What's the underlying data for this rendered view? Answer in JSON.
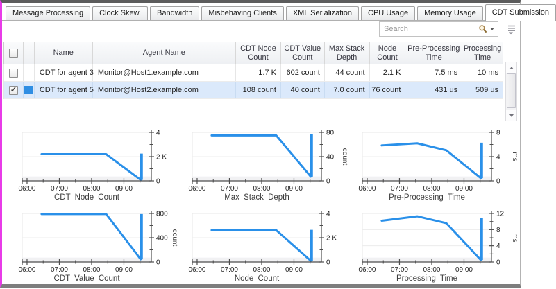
{
  "tabs": {
    "items": [
      "Message Processing",
      "Clock Skew.",
      "Bandwidth",
      "Misbehaving Clients",
      "XML Serialization",
      "CPU Usage",
      "Memory Usage",
      "CDT Submission"
    ],
    "active": "CDT Submission"
  },
  "toolbar": {
    "search": {
      "placeholder": "Search",
      "value": ""
    }
  },
  "table": {
    "header_checkbox_checked": false,
    "columns": [
      {
        "label": "",
        "type": "checkbox"
      },
      {
        "label": "",
        "type": "swatch"
      },
      {
        "label": "Name"
      },
      {
        "label": "Agent Name"
      },
      {
        "label": "CDT Node Count"
      },
      {
        "label": "CDT Value Count"
      },
      {
        "label": "Max Stack Depth"
      },
      {
        "label": "Node Count"
      },
      {
        "label": "Pre-Processing Time"
      },
      {
        "label": "Processing Time"
      }
    ],
    "rows": [
      {
        "checked": false,
        "selected": false,
        "swatch": null,
        "cells": [
          "CDT for agent 3",
          "Monitor@Host1.example.com",
          "1.7 K",
          "602 count",
          "44 count",
          "2.1 K",
          "7.5 ms",
          "10 ms"
        ]
      },
      {
        "checked": true,
        "selected": true,
        "swatch": "#2f8ee3",
        "cells": [
          "CDT for agent 5",
          "Monitor@Host2.example.com",
          "108 count",
          "40 count",
          "7.0 count",
          "76 count",
          "431 us",
          "509 us"
        ]
      }
    ]
  },
  "colors": {
    "line_blue": "#2a90e9",
    "selected_row_bg": "#dbe9fb",
    "swatch_blue": "#2f8ee3",
    "frame_magenta": "#e83be8",
    "axis": "#4d4d4d"
  },
  "chart_data": [
    {
      "type": "line",
      "title": "CDT Node Count",
      "ylabel": "",
      "xlim": [
        5.85,
        9.85
      ],
      "ylim": [
        0,
        4
      ],
      "xticks": [
        {
          "v": 6,
          "label": "06:00"
        },
        {
          "v": 7,
          "label": "07:00"
        },
        {
          "v": 8,
          "label": "08:00"
        },
        {
          "v": 9,
          "label": "09:00"
        }
      ],
      "xminor": [
        6.5,
        7.5,
        8.5,
        9.5
      ],
      "yticks": [
        {
          "v": 0,
          "label": "0"
        },
        {
          "v": 2,
          "label": "2 K"
        },
        {
          "v": 4,
          "label": "4"
        }
      ],
      "yminor": [
        1,
        3
      ],
      "points": [
        [
          6.45,
          2.2
        ],
        [
          8.45,
          2.2
        ],
        [
          9.52,
          0.08
        ]
      ],
      "spike": {
        "x": 9.54,
        "y0": 0.08,
        "y1": 2.25
      }
    },
    {
      "type": "line",
      "title": "Max Stack Depth",
      "ylabel": "count",
      "xlim": [
        5.85,
        9.85
      ],
      "ylim": [
        0,
        80
      ],
      "xticks": [
        {
          "v": 6,
          "label": "06:00"
        },
        {
          "v": 7,
          "label": "07:00"
        },
        {
          "v": 8,
          "label": "08:00"
        },
        {
          "v": 9,
          "label": "09:00"
        }
      ],
      "xminor": [
        6.5,
        7.5,
        8.5,
        9.5
      ],
      "yticks": [
        {
          "v": 0,
          "label": "0"
        },
        {
          "v": 40,
          "label": "40"
        },
        {
          "v": 80,
          "label": "80"
        }
      ],
      "yminor": [
        20,
        60
      ],
      "points": [
        [
          6.45,
          75
        ],
        [
          8.45,
          75
        ],
        [
          9.52,
          7
        ]
      ],
      "spike": {
        "x": 9.54,
        "y0": 7,
        "y1": 77
      }
    },
    {
      "type": "line",
      "title": "Pre-Processing Time",
      "ylabel": "ms",
      "xlim": [
        5.85,
        9.85
      ],
      "ylim": [
        0,
        8
      ],
      "xticks": [
        {
          "v": 6,
          "label": "06:00"
        },
        {
          "v": 7,
          "label": "07:00"
        },
        {
          "v": 8,
          "label": "08:00"
        },
        {
          "v": 9,
          "label": "09:00"
        }
      ],
      "xminor": [
        6.5,
        7.5,
        8.5,
        9.5
      ],
      "yticks": [
        {
          "v": 0,
          "label": "0"
        },
        {
          "v": 4,
          "label": "4"
        },
        {
          "v": 8,
          "label": "8"
        }
      ],
      "yminor": [
        2,
        6
      ],
      "points": [
        [
          6.45,
          5.85
        ],
        [
          7.55,
          6.2
        ],
        [
          8.45,
          5.05
        ],
        [
          9.52,
          0.45
        ]
      ],
      "spike": {
        "x": 9.54,
        "y0": 0.45,
        "y1": 6.3
      }
    },
    {
      "type": "line",
      "title": "CDT Value Count",
      "ylabel": "count",
      "xlim": [
        5.85,
        9.85
      ],
      "ylim": [
        0,
        800
      ],
      "xticks": [
        {
          "v": 6,
          "label": "06:00"
        },
        {
          "v": 7,
          "label": "07:00"
        },
        {
          "v": 8,
          "label": "08:00"
        },
        {
          "v": 9,
          "label": "09:00"
        }
      ],
      "xminor": [
        6.5,
        7.5,
        8.5,
        9.5
      ],
      "yticks": [
        {
          "v": 0,
          "label": "0"
        },
        {
          "v": 400,
          "label": "400"
        },
        {
          "v": 800,
          "label": "800"
        }
      ],
      "yminor": [
        200,
        600
      ],
      "points": [
        [
          6.45,
          790
        ],
        [
          8.45,
          790
        ],
        [
          9.52,
          45
        ]
      ],
      "spike": {
        "x": 9.54,
        "y0": 45,
        "y1": 790
      }
    },
    {
      "type": "line",
      "title": "Node Count",
      "ylabel": "",
      "xlim": [
        5.85,
        9.85
      ],
      "ylim": [
        0,
        4
      ],
      "xticks": [
        {
          "v": 6,
          "label": "06:00"
        },
        {
          "v": 7,
          "label": "07:00"
        },
        {
          "v": 8,
          "label": "08:00"
        },
        {
          "v": 9,
          "label": "09:00"
        }
      ],
      "xminor": [
        6.5,
        7.5,
        8.5,
        9.5
      ],
      "yticks": [
        {
          "v": 0,
          "label": "0"
        },
        {
          "v": 2,
          "label": "2 K"
        },
        {
          "v": 4,
          "label": "4"
        }
      ],
      "yminor": [
        1,
        3
      ],
      "points": [
        [
          6.45,
          2.62
        ],
        [
          8.45,
          2.62
        ],
        [
          9.52,
          0.1
        ]
      ],
      "spike": {
        "x": 9.54,
        "y0": 0.1,
        "y1": 2.65
      }
    },
    {
      "type": "line",
      "title": "Processing Time",
      "ylabel": "ms",
      "xlim": [
        5.85,
        9.85
      ],
      "ylim": [
        0,
        12
      ],
      "xticks": [
        {
          "v": 6,
          "label": "06:00"
        },
        {
          "v": 7,
          "label": "07:00"
        },
        {
          "v": 8,
          "label": "08:00"
        },
        {
          "v": 9,
          "label": "09:00"
        }
      ],
      "xminor": [
        6.5,
        7.5,
        8.5,
        9.5
      ],
      "yticks": [
        {
          "v": 0,
          "label": "0"
        },
        {
          "v": 4,
          "label": "4"
        },
        {
          "v": 8,
          "label": "8"
        },
        {
          "v": 12,
          "label": "12"
        }
      ],
      "yminor": [
        2,
        6,
        10
      ],
      "points": [
        [
          6.45,
          10.2
        ],
        [
          7.55,
          11.3
        ],
        [
          8.45,
          9.6
        ],
        [
          9.52,
          0.5
        ]
      ],
      "spike": {
        "x": 9.54,
        "y0": 0.5,
        "y1": 10.8
      }
    }
  ]
}
